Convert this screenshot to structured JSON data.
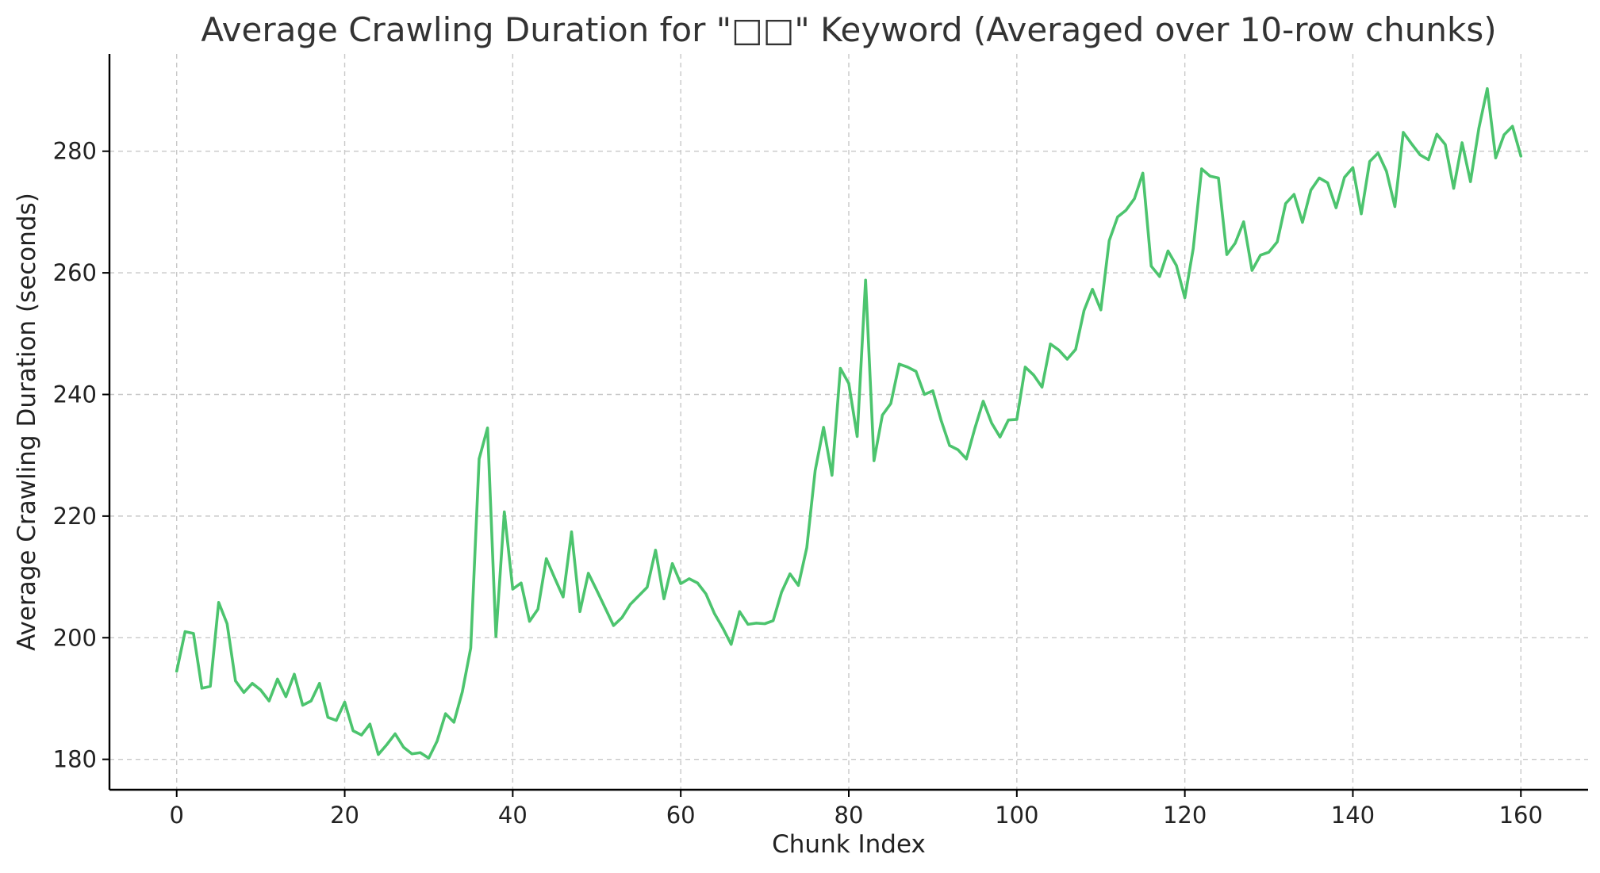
{
  "chart_data": {
    "type": "line",
    "title": "Average Crawling Duration for \"□□\" Keyword (Averaged over 10-row chunks)",
    "xlabel": "Chunk Index",
    "ylabel": "Average Crawling Duration (seconds)",
    "xlim": [
      -8,
      168
    ],
    "ylim": [
      175,
      296
    ],
    "x_ticks": [
      0,
      20,
      40,
      60,
      80,
      100,
      120,
      140,
      160
    ],
    "y_ticks": [
      180,
      200,
      220,
      240,
      260,
      280
    ],
    "grid": true,
    "legend": "none",
    "line_color": "#4cc46e",
    "series": [
      {
        "x": [
          0,
          1,
          2,
          3,
          4,
          5,
          6,
          7,
          8,
          9,
          10,
          11,
          12,
          13,
          14,
          15,
          16,
          17,
          18,
          19,
          20,
          21,
          22,
          23,
          24,
          25,
          26,
          27,
          28,
          29,
          30,
          31,
          32,
          33,
          34,
          35,
          36,
          37,
          38,
          39,
          40,
          41,
          42,
          43,
          44,
          45,
          46,
          47,
          48,
          49,
          50,
          51,
          52,
          53,
          54,
          55,
          56,
          57,
          58,
          59,
          60,
          61,
          62,
          63,
          64,
          65,
          66,
          67,
          68,
          69,
          70,
          71,
          72,
          73,
          74,
          75,
          76,
          77,
          78,
          79,
          80,
          81,
          82,
          83,
          84,
          85,
          86,
          87,
          88,
          89,
          90,
          91,
          92,
          93,
          94,
          95,
          96,
          97,
          98,
          99,
          100,
          101,
          102,
          103,
          104,
          105,
          106,
          107,
          108,
          109,
          110,
          111,
          112,
          113,
          114,
          115,
          116,
          117,
          118,
          119,
          120,
          121,
          122,
          123,
          124,
          125,
          126,
          127,
          128,
          129,
          130,
          131,
          132,
          133,
          134,
          135,
          136,
          137,
          138,
          139,
          140,
          141,
          142,
          143,
          144,
          145,
          146,
          147,
          148,
          149,
          150,
          151,
          152,
          153,
          154,
          155,
          156,
          157,
          158,
          159,
          160
        ],
        "values": [
          194.5,
          201.0,
          200.7,
          191.7,
          192.0,
          205.8,
          202.3,
          192.9,
          191.0,
          192.5,
          191.4,
          189.6,
          193.2,
          190.3,
          194.0,
          188.9,
          189.6,
          192.5,
          186.9,
          186.4,
          189.4,
          184.7,
          184.0,
          185.8,
          180.8,
          182.4,
          184.2,
          182.0,
          180.9,
          181.1,
          180.2,
          183.0,
          187.5,
          186.1,
          191.1,
          198.3,
          229.4,
          234.5,
          200.2,
          220.7,
          208.0,
          209.0,
          202.7,
          204.7,
          213.0,
          209.8,
          206.7,
          217.4,
          204.3,
          210.6,
          207.8,
          204.9,
          202.0,
          203.3,
          205.5,
          206.9,
          208.3,
          214.4,
          206.4,
          212.2,
          208.9,
          209.7,
          209.0,
          207.2,
          204.0,
          201.6,
          198.9,
          204.3,
          202.2,
          202.4,
          202.3,
          202.8,
          207.5,
          210.5,
          208.6,
          214.8,
          227.5,
          234.6,
          226.7,
          244.3,
          241.8,
          233.1,
          258.8,
          229.1,
          236.6,
          238.5,
          245.0,
          244.5,
          243.8,
          240.0,
          240.6,
          235.7,
          231.6,
          230.9,
          229.4,
          234.4,
          238.9,
          235.3,
          233.0,
          235.8,
          235.9,
          244.5,
          243.2,
          241.2,
          248.3,
          247.3,
          245.8,
          247.4,
          253.8,
          257.3,
          253.9,
          265.3,
          269.2,
          270.3,
          272.2,
          276.4,
          261.1,
          259.4,
          263.6,
          261.2,
          255.9,
          264.0,
          277.1,
          275.9,
          275.6,
          263.0,
          264.9,
          268.4,
          260.4,
          262.9,
          263.4,
          265.1,
          271.4,
          272.9,
          268.3,
          273.6,
          275.6,
          274.8,
          270.7,
          275.7,
          277.3,
          269.7,
          278.3,
          279.7,
          276.7,
          270.9,
          283.1,
          281.2,
          279.4,
          278.6,
          282.8,
          281.1,
          273.9,
          281.4,
          275.0,
          283.8,
          290.3,
          278.9,
          282.7,
          284.1,
          279.2
        ]
      }
    ]
  }
}
